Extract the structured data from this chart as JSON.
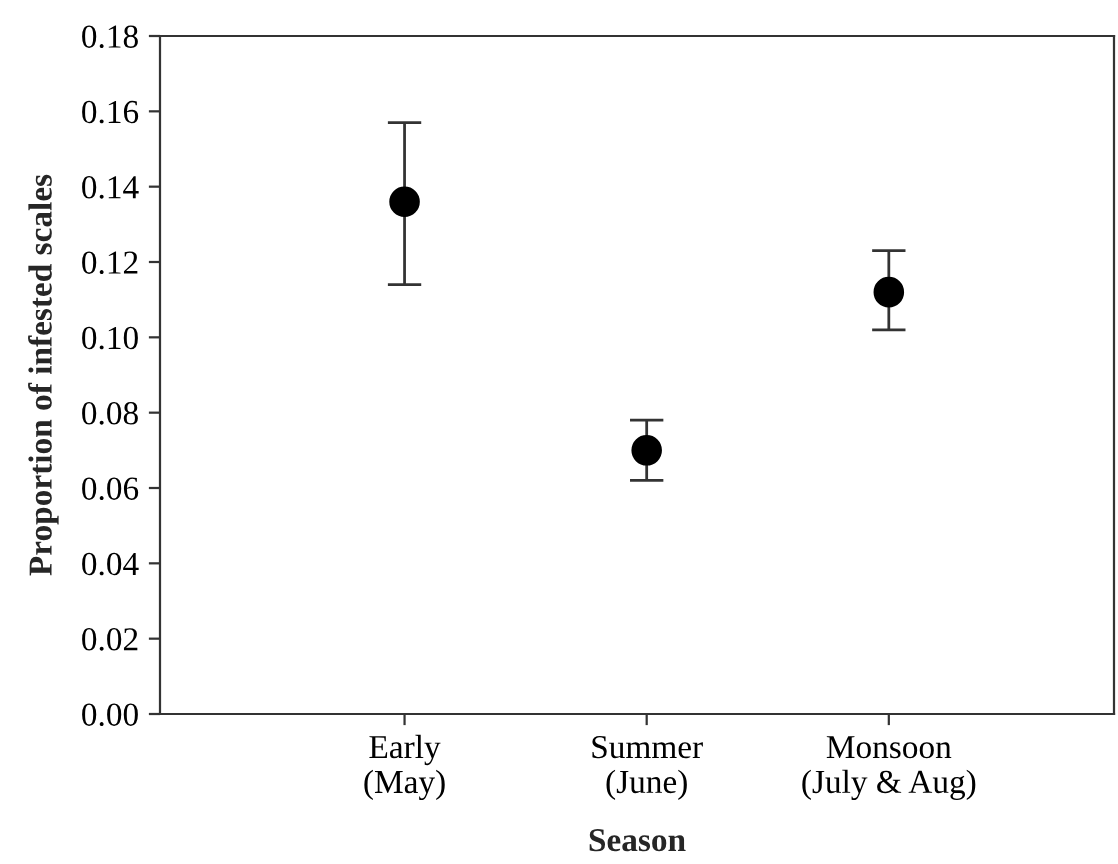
{
  "chart_data": {
    "type": "scatter",
    "xlabel": "Season",
    "ylabel": "Proportion of infested scales",
    "categories": [
      "Early\n(May)",
      "Summer\n(June)",
      "Monsoon\n(July & Aug)"
    ],
    "values": [
      0.136,
      0.07,
      0.112
    ],
    "errors": [
      [
        0.114,
        0.157
      ],
      [
        0.062,
        0.078
      ],
      [
        0.102,
        0.123
      ]
    ],
    "color": "#000000",
    "marker": "circle",
    "ylim": [
      0,
      0.18
    ],
    "yticks": [
      {
        "value": 0,
        "label": "0.00"
      },
      {
        "value": 0.02,
        "label": "0.02"
      },
      {
        "value": 0.04,
        "label": "0.04"
      },
      {
        "value": 0.06,
        "label": "0.06"
      },
      {
        "value": 0.08,
        "label": "0.08"
      },
      {
        "value": 0.1,
        "label": "0.10"
      },
      {
        "value": 0.12,
        "label": "0.12"
      },
      {
        "value": 0.14,
        "label": "0.14"
      },
      {
        "value": 0.16,
        "label": "0.16"
      },
      {
        "value": 0.18,
        "label": "0.18"
      }
    ],
    "grid": false
  }
}
